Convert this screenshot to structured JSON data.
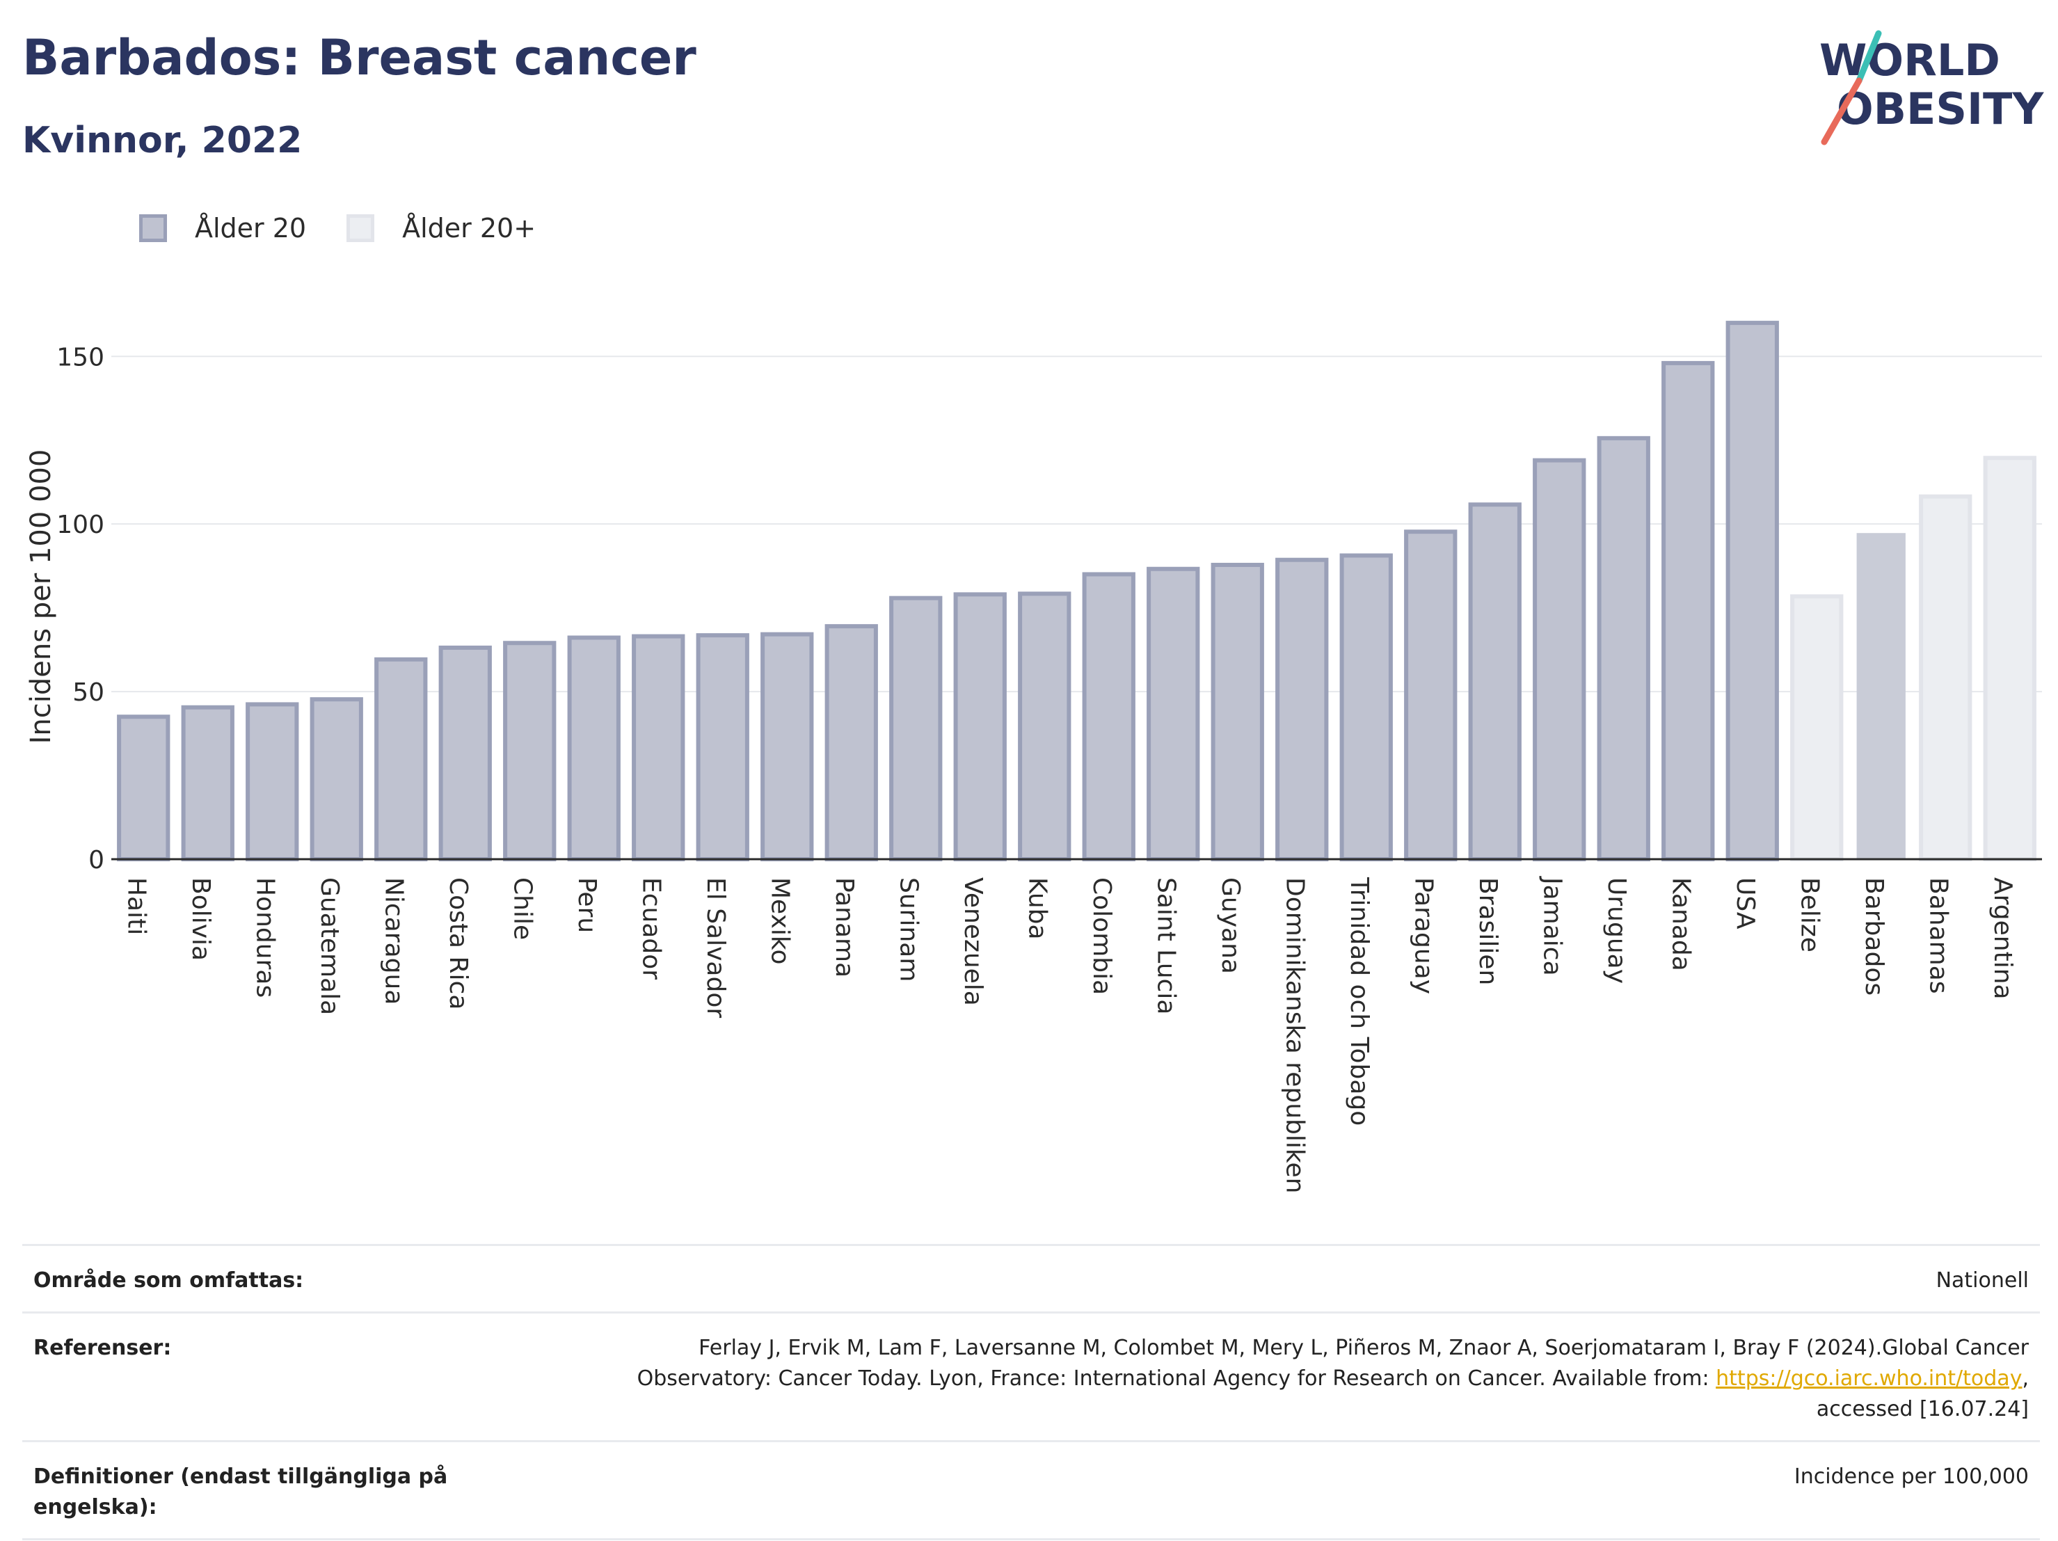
{
  "header": {
    "title": "Barbados: Breast cancer",
    "subtitle": "Kvinnor, 2022"
  },
  "logo": {
    "line1": "WORLD",
    "line2": "OBESITY"
  },
  "colors": {
    "bar_primary_fill": "#bfc2d0",
    "bar_primary_stroke": "#9aa0b8",
    "bar_secondary_fill": "#eceef2",
    "bar_highlight_fill": "#c9ccd7",
    "title": "#2b3560",
    "logo_teal": "#3bbfb5",
    "logo_red": "#e86a5a",
    "link": "#e0a800"
  },
  "legend": {
    "items": [
      "Ålder 20",
      "Ålder 20+"
    ]
  },
  "chart_data": {
    "type": "bar",
    "ylabel": "Incidens per 100 000",
    "ylim": [
      0,
      165
    ],
    "yticks": [
      0,
      50,
      100,
      150
    ],
    "grid": true,
    "legend_position": "top-left",
    "categories": [
      "Haiti",
      "Bolivia",
      "Honduras",
      "Guatemala",
      "Nicaragua",
      "Costa Rica",
      "Chile",
      "Peru",
      "Ecuador",
      "El Salvador",
      "Mexiko",
      "Panama",
      "Surinam",
      "Venezuela",
      "Kuba",
      "Colombia",
      "Saint Lucia",
      "Guyana",
      "Dominikanska republiken",
      "Trinidad och Tobago",
      "Paraguay",
      "Brasilien",
      "Jamaica",
      "Uruguay",
      "Kanada",
      "USA",
      "Belize",
      "Barbados",
      "Bahamas",
      "Argentina"
    ],
    "values": [
      42.5,
      45.3,
      46.2,
      47.7,
      59.6,
      63.1,
      64.5,
      66.1,
      66.5,
      66.8,
      67.1,
      69.5,
      77.9,
      79.0,
      79.2,
      85.0,
      86.6,
      87.8,
      89.3,
      90.6,
      97.7,
      105.8,
      119.0,
      125.6,
      148.0,
      160.0,
      78.4,
      97.3,
      108.2,
      119.7
    ],
    "series_group": [
      "Ålder 20",
      "Ålder 20",
      "Ålder 20",
      "Ålder 20",
      "Ålder 20",
      "Ålder 20",
      "Ålder 20",
      "Ålder 20",
      "Ålder 20",
      "Ålder 20",
      "Ålder 20",
      "Ålder 20",
      "Ålder 20",
      "Ålder 20",
      "Ålder 20",
      "Ålder 20",
      "Ålder 20",
      "Ålder 20",
      "Ålder 20",
      "Ålder 20",
      "Ålder 20",
      "Ålder 20",
      "Ålder 20",
      "Ålder 20",
      "Ålder 20",
      "Ålder 20",
      "Ålder 20+",
      "Ålder 20+",
      "Ålder 20+",
      "Ålder 20+"
    ],
    "highlight": "Barbados"
  },
  "info": {
    "coverage_label": "Område som omfattas:",
    "coverage_value": "Nationell",
    "references_label": "Referenser:",
    "references_line1": "Ferlay J, Ervik M, Lam F, Laversanne M, Colombet M, Mery L, Piñeros M, Znaor A, Soerjomataram I, Bray F (2024).Global Cancer",
    "references_line2": "Observatory: Cancer Today. Lyon, France: International Agency for Research on Cancer. Available from: ",
    "references_link": "https://gco.iarc.who.int/today",
    "references_line3_tail": ",",
    "references_line3": "accessed [16.07.24]",
    "definitions_label": "Definitioner (endast tillgängliga på engelska):",
    "definitions_value": "Incidence per 100,000"
  }
}
